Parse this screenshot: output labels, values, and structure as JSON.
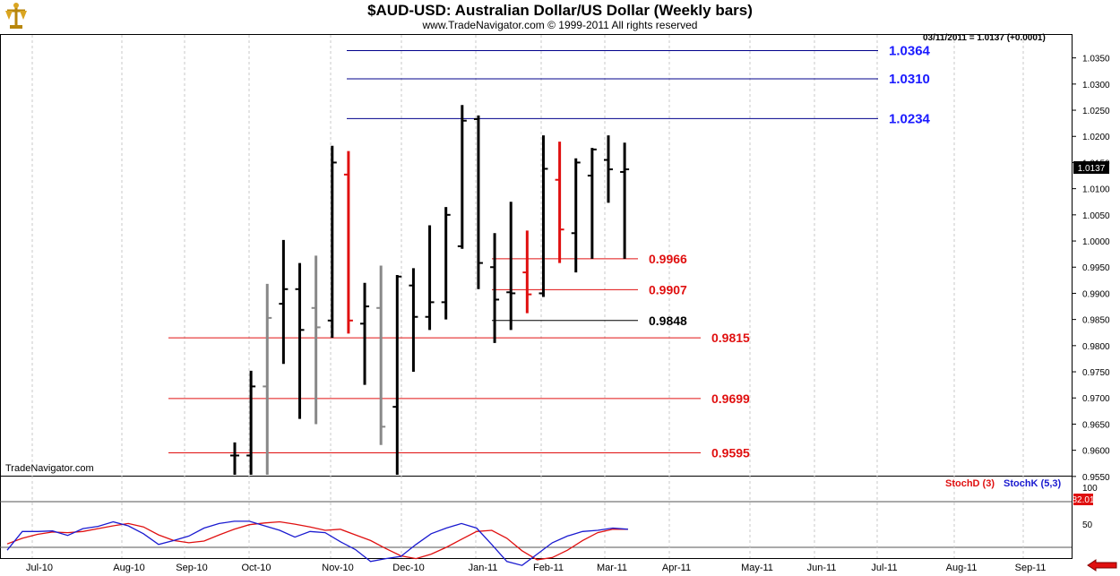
{
  "header": {
    "title": "$AUD-USD:  Australian Dollar/US Dollar  (Weekly bars)",
    "subtitle": "www.TradeNavigator.com © 1999-2011 All rights reserved",
    "quote": "03/11/2011 = 1.0137 (+0.0001)",
    "watermark": "TradeNavigator.com"
  },
  "colors": {
    "up_bar": "#000000",
    "down_bar": "#e01010",
    "gray_bar": "#888888",
    "resistance": "#00008b",
    "resistance_label": "#1a1aff",
    "support": "#e01010",
    "support_label": "#e01010",
    "stoch_d": "#e01010",
    "stoch_k": "#1a1ad0",
    "last_price_bg": "#000000"
  },
  "icons": {
    "logo": "trade-navigator-logo-icon",
    "nav": "left-arrow-icon"
  },
  "chart_data": [
    {
      "type": "ohlc",
      "title": "$AUD-USD:  Australian Dollar/US Dollar  (Weekly bars)",
      "x_labels": [
        "Jul-10",
        "Aug-10",
        "Sep-10",
        "Oct-10",
        "Nov-10",
        "Dec-10",
        "Jan-11",
        "Feb-11",
        "Mar-11",
        "Apr-11",
        "May-11",
        "Jun-11",
        "Jul-11",
        "Aug-11",
        "Sep-11"
      ],
      "y_ticks": [
        "0.9550",
        "0.9600",
        "0.9650",
        "0.9700",
        "0.9750",
        "0.9800",
        "0.9850",
        "0.9900",
        "0.9950",
        "1.0000",
        "1.0050",
        "1.0100",
        "1.0150",
        "1.0200",
        "1.0250",
        "1.0300",
        "1.0350"
      ],
      "ylim": [
        0.9525,
        1.0375
      ],
      "grid": "vertical dashed",
      "last_price": "1.0137",
      "bars": [
        {
          "color": "black",
          "h": 0.9615,
          "l": 0.9525,
          "o": 0.959,
          "c": 0.959
        },
        {
          "color": "black",
          "h": 0.9752,
          "l": 0.9525,
          "o": 0.959,
          "c": 0.9722
        },
        {
          "color": "gray",
          "h": 0.9918,
          "l": 0.9525,
          "o": 0.9722,
          "c": 0.9853
        },
        {
          "color": "black",
          "h": 1.0002,
          "l": 0.9765,
          "o": 0.988,
          "c": 0.9908
        },
        {
          "color": "black",
          "h": 0.9958,
          "l": 0.966,
          "o": 0.9908,
          "c": 0.983
        },
        {
          "color": "gray",
          "h": 0.9972,
          "l": 0.965,
          "o": 0.9872,
          "c": 0.9835
        },
        {
          "color": "black",
          "h": 1.0182,
          "l": 0.9815,
          "o": 0.9848,
          "c": 1.015
        },
        {
          "color": "red",
          "h": 1.0172,
          "l": 0.9823,
          "o": 1.0127,
          "c": 0.9848
        },
        {
          "color": "black",
          "h": 0.992,
          "l": 0.9725,
          "o": 0.9842,
          "c": 0.9875
        },
        {
          "color": "gray",
          "h": 0.9953,
          "l": 0.961,
          "o": 0.9872,
          "c": 0.9645
        },
        {
          "color": "black",
          "h": 0.9935,
          "l": 0.9525,
          "o": 0.9683,
          "c": 0.9932
        },
        {
          "color": "black",
          "h": 0.9948,
          "l": 0.975,
          "o": 0.9915,
          "c": 0.9855
        },
        {
          "color": "black",
          "h": 1.003,
          "l": 0.983,
          "o": 0.9855,
          "c": 0.9883
        },
        {
          "color": "black",
          "h": 1.0065,
          "l": 0.985,
          "o": 0.9883,
          "c": 1.005
        },
        {
          "color": "black",
          "h": 1.026,
          "l": 0.9985,
          "o": 0.999,
          "c": 1.023
        },
        {
          "color": "black",
          "h": 1.024,
          "l": 0.9908,
          "o": 1.0233,
          "c": 0.9958
        },
        {
          "color": "black",
          "h": 1.0015,
          "l": 0.9805,
          "o": 0.995,
          "c": 0.9888
        },
        {
          "color": "black",
          "h": 1.0075,
          "l": 0.983,
          "o": 0.9902,
          "c": 0.99
        },
        {
          "color": "red",
          "h": 1.002,
          "l": 0.9862,
          "o": 0.994,
          "c": 0.9898
        },
        {
          "color": "black",
          "h": 1.0202,
          "l": 0.9893,
          "o": 0.99,
          "c": 1.0138
        },
        {
          "color": "red",
          "h": 1.019,
          "l": 0.9958,
          "o": 1.0117,
          "c": 1.0022
        },
        {
          "color": "black",
          "h": 1.0158,
          "l": 0.994,
          "o": 1.0015,
          "c": 1.015
        },
        {
          "color": "black",
          "h": 1.0178,
          "l": 0.9966,
          "o": 1.0125,
          "c": 1.0175
        },
        {
          "color": "black",
          "h": 1.0202,
          "l": 1.0073,
          "o": 1.0155,
          "c": 1.0137
        },
        {
          "color": "black",
          "h": 1.0188,
          "l": 0.9966,
          "o": 1.0132,
          "c": 1.0137
        }
      ],
      "levels": [
        {
          "value": 1.0364,
          "label": "1.0364",
          "kind": "resistance"
        },
        {
          "value": 1.031,
          "label": "1.0310",
          "kind": "resistance"
        },
        {
          "value": 1.0234,
          "label": "1.0234",
          "kind": "resistance"
        },
        {
          "value": 0.9966,
          "label": "0.9966",
          "kind": "support"
        },
        {
          "value": 0.9907,
          "label": "0.9907",
          "kind": "support"
        },
        {
          "value": 0.9848,
          "label": "0.9848",
          "kind": "neutral"
        },
        {
          "value": 0.9815,
          "label": "0.9815",
          "kind": "support"
        },
        {
          "value": 0.9699,
          "label": "0.9699",
          "kind": "support"
        },
        {
          "value": 0.9595,
          "label": "0.9595",
          "kind": "support"
        }
      ]
    },
    {
      "type": "line",
      "y_ticks": [
        "100",
        "50"
      ],
      "ylim": [
        0,
        110
      ],
      "series": [
        {
          "name": "StochD (3)",
          "values": [
            56,
            66,
            73,
            77,
            76,
            78,
            83,
            88,
            92,
            86,
            72,
            62,
            58,
            61,
            72,
            82,
            90,
            93,
            95,
            91,
            86,
            80,
            82,
            72,
            62,
            48,
            35,
            30,
            38,
            50,
            64,
            78,
            80,
            66,
            44,
            28,
            32,
            45,
            62,
            76,
            82,
            82
          ]
        },
        {
          "name": "StochK (5,3)",
          "values": [
            45,
            78,
            78,
            79,
            71,
            83,
            87,
            95,
            88,
            74,
            55,
            62,
            70,
            84,
            92,
            96,
            96,
            88,
            80,
            68,
            78,
            76,
            60,
            46,
            25,
            30,
            34,
            55,
            74,
            84,
            92,
            84,
            55,
            25,
            18,
            38,
            58,
            70,
            78,
            80,
            84,
            82
          ]
        }
      ],
      "last_value": "82.01"
    }
  ]
}
